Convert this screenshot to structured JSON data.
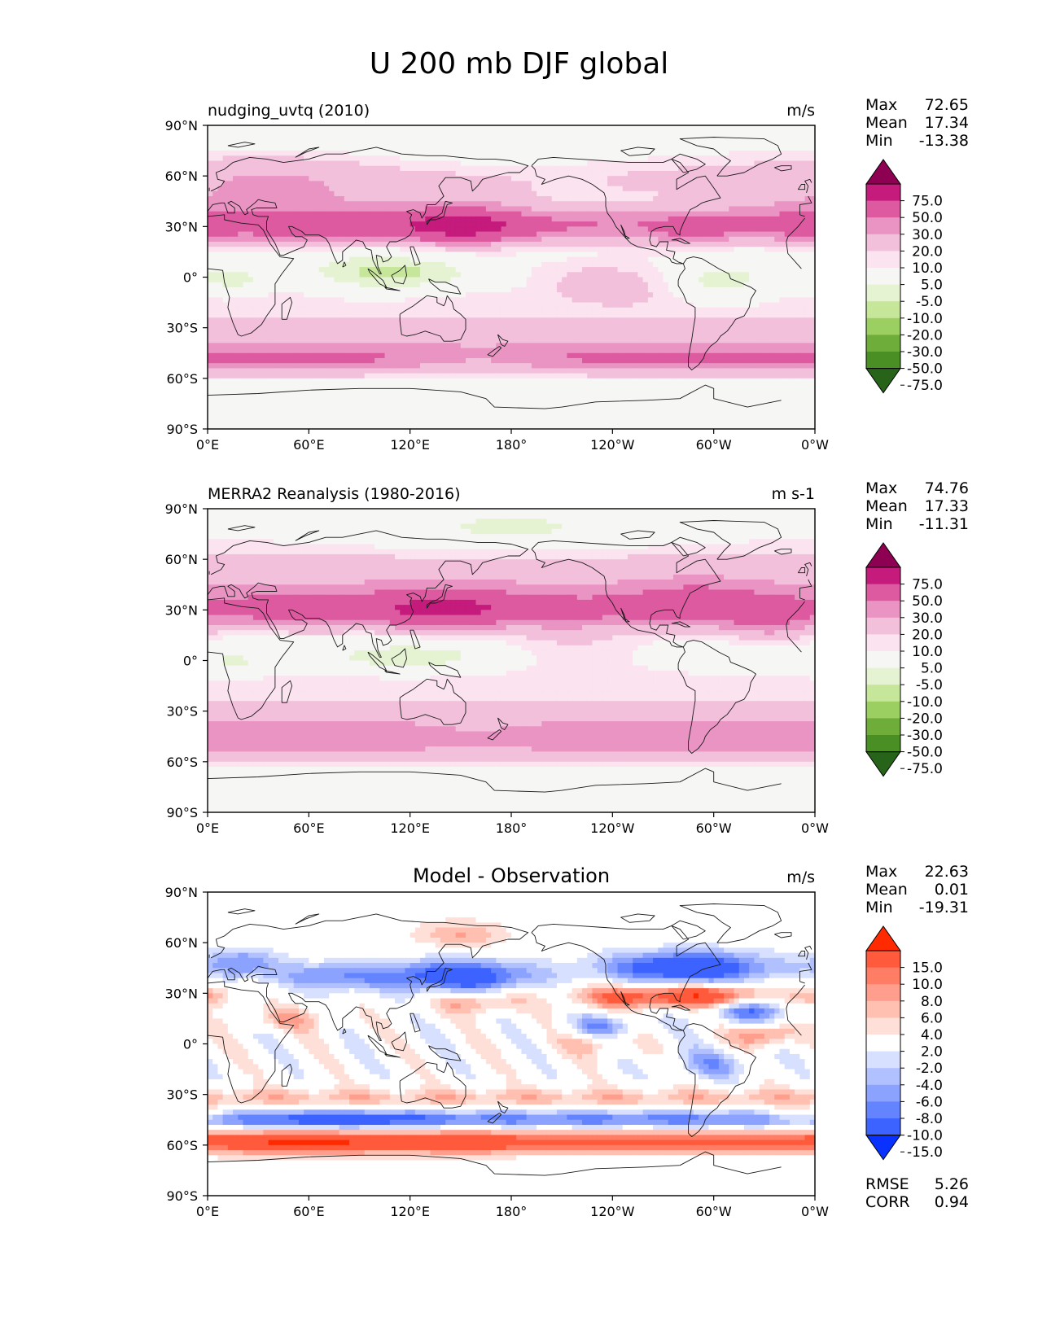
{
  "figure": {
    "title": "U 200 mb DJF global"
  },
  "axes": {
    "lat_ticks": [
      "90°N",
      "60°N",
      "30°N",
      "0°",
      "30°S",
      "60°S",
      "90°S"
    ],
    "lon_ticks": [
      "0°E",
      "60°E",
      "120°E",
      "180°",
      "120°W",
      "60°W",
      "0°W"
    ]
  },
  "panels": [
    {
      "id": "model",
      "title_left": "nudging_uvtq (2010)",
      "title_center": "",
      "units": "m/s",
      "stats": [
        {
          "label": "Max",
          "value": "72.65"
        },
        {
          "label": "Mean",
          "value": "17.34"
        },
        {
          "label": "Min",
          "value": "-13.38"
        }
      ],
      "colorbar": "wind",
      "field": "model",
      "extra_stats": []
    },
    {
      "id": "obs",
      "title_left": "MERRA2 Reanalysis (1980-2016)",
      "title_center": "",
      "units": "m s-1",
      "stats": [
        {
          "label": "Max",
          "value": "74.76"
        },
        {
          "label": "Mean",
          "value": "17.33"
        },
        {
          "label": "Min",
          "value": "-11.31"
        }
      ],
      "colorbar": "wind",
      "field": "obs",
      "extra_stats": []
    },
    {
      "id": "diff",
      "title_left": "",
      "title_center": "Model - Observation",
      "units": "m/s",
      "stats": [
        {
          "label": "Max",
          "value": "22.63"
        },
        {
          "label": "Mean",
          "value": "0.01"
        },
        {
          "label": "Min",
          "value": "-19.31"
        }
      ],
      "colorbar": "diff",
      "field": "diff",
      "extra_stats": [
        {
          "label": "RMSE",
          "value": "5.26"
        },
        {
          "label": "CORR",
          "value": "0.94"
        }
      ]
    }
  ],
  "colorbars": {
    "wind": {
      "levels": [
        "75.0",
        "50.0",
        "30.0",
        "20.0",
        "10.0",
        "5.0",
        "-5.0",
        "-10.0",
        "-20.0",
        "-30.0",
        "-50.0",
        "-75.0"
      ],
      "colors": [
        "#8e0152",
        "#c51b7d",
        "#de5aa0",
        "#ea94c4",
        "#f3c0dc",
        "#fbe3ef",
        "#f6f6f4",
        "#e6f3d3",
        "#c6e69a",
        "#9ccf62",
        "#6fad3a",
        "#4a8f24",
        "#276419"
      ]
    },
    "diff": {
      "levels": [
        "15.0",
        "10.0",
        "8.0",
        "6.0",
        "4.0",
        "2.0",
        "-2.0",
        "-4.0",
        "-6.0",
        "-8.0",
        "-10.0",
        "-15.0"
      ],
      "colors": [
        "#ff2a00",
        "#ff5a3c",
        "#ff7d64",
        "#ff9e8c",
        "#ffbfb1",
        "#ffe0d8",
        "#ffffff",
        "#d8e0ff",
        "#b1c0ff",
        "#8ca2ff",
        "#6484ff",
        "#3c62ff",
        "#0a32ff"
      ]
    }
  },
  "chart_data": [
    {
      "type": "heatmap",
      "title": "nudging_uvtq (2010)",
      "variable": "U 200 mb DJF",
      "units": "m/s",
      "x_range": [
        0,
        360
      ],
      "y_range": [
        -90,
        90
      ],
      "contour_levels": [
        -75,
        -50,
        -30,
        -20,
        -10,
        -5,
        5,
        10,
        20,
        30,
        50,
        75
      ],
      "zonal_profile_approx": [
        {
          "lat": 80,
          "u": 10
        },
        {
          "lat": 60,
          "u": 15
        },
        {
          "lat": 45,
          "u": 22
        },
        {
          "lat": 30,
          "u": 42
        },
        {
          "lat": 15,
          "u": 12
        },
        {
          "lat": 0,
          "u": -2
        },
        {
          "lat": -15,
          "u": 6
        },
        {
          "lat": -30,
          "u": 22
        },
        {
          "lat": -48,
          "u": 32
        },
        {
          "lat": -65,
          "u": 12
        },
        {
          "lat": -80,
          "u": 0
        }
      ],
      "max": 72.65,
      "mean": 17.34,
      "min": -13.38
    },
    {
      "type": "heatmap",
      "title": "MERRA2 Reanalysis (1980-2016)",
      "variable": "U 200 mb DJF",
      "units": "m s-1",
      "x_range": [
        0,
        360
      ],
      "y_range": [
        -90,
        90
      ],
      "contour_levels": [
        -75,
        -50,
        -30,
        -20,
        -10,
        -5,
        5,
        10,
        20,
        30,
        50,
        75
      ],
      "zonal_profile_approx": [
        {
          "lat": 80,
          "u": 6
        },
        {
          "lat": 60,
          "u": 14
        },
        {
          "lat": 45,
          "u": 24
        },
        {
          "lat": 30,
          "u": 40
        },
        {
          "lat": 15,
          "u": 15
        },
        {
          "lat": 0,
          "u": 0
        },
        {
          "lat": -15,
          "u": 7
        },
        {
          "lat": -30,
          "u": 20
        },
        {
          "lat": -48,
          "u": 28
        },
        {
          "lat": -65,
          "u": 12
        },
        {
          "lat": -80,
          "u": 0
        }
      ],
      "max": 74.76,
      "mean": 17.33,
      "min": -11.31
    },
    {
      "type": "heatmap",
      "title": "Model - Observation",
      "variable": "U 200 mb DJF difference",
      "units": "m/s",
      "x_range": [
        0,
        360
      ],
      "y_range": [
        -90,
        90
      ],
      "contour_levels": [
        -15,
        -10,
        -8,
        -6,
        -4,
        -2,
        2,
        4,
        6,
        8,
        10,
        15
      ],
      "zonal_profile_approx": [
        {
          "lat": 70,
          "u": 2
        },
        {
          "lat": 50,
          "u": -8
        },
        {
          "lat": 40,
          "u": -10
        },
        {
          "lat": 30,
          "u": 8
        },
        {
          "lat": 15,
          "u": -3
        },
        {
          "lat": 0,
          "u": 0
        },
        {
          "lat": -30,
          "u": 4
        },
        {
          "lat": -45,
          "u": -9
        },
        {
          "lat": -60,
          "u": 11
        },
        {
          "lat": -80,
          "u": 0
        }
      ],
      "max": 22.63,
      "mean": 0.01,
      "min": -19.31,
      "rmse": 5.26,
      "corr": 0.94
    }
  ]
}
